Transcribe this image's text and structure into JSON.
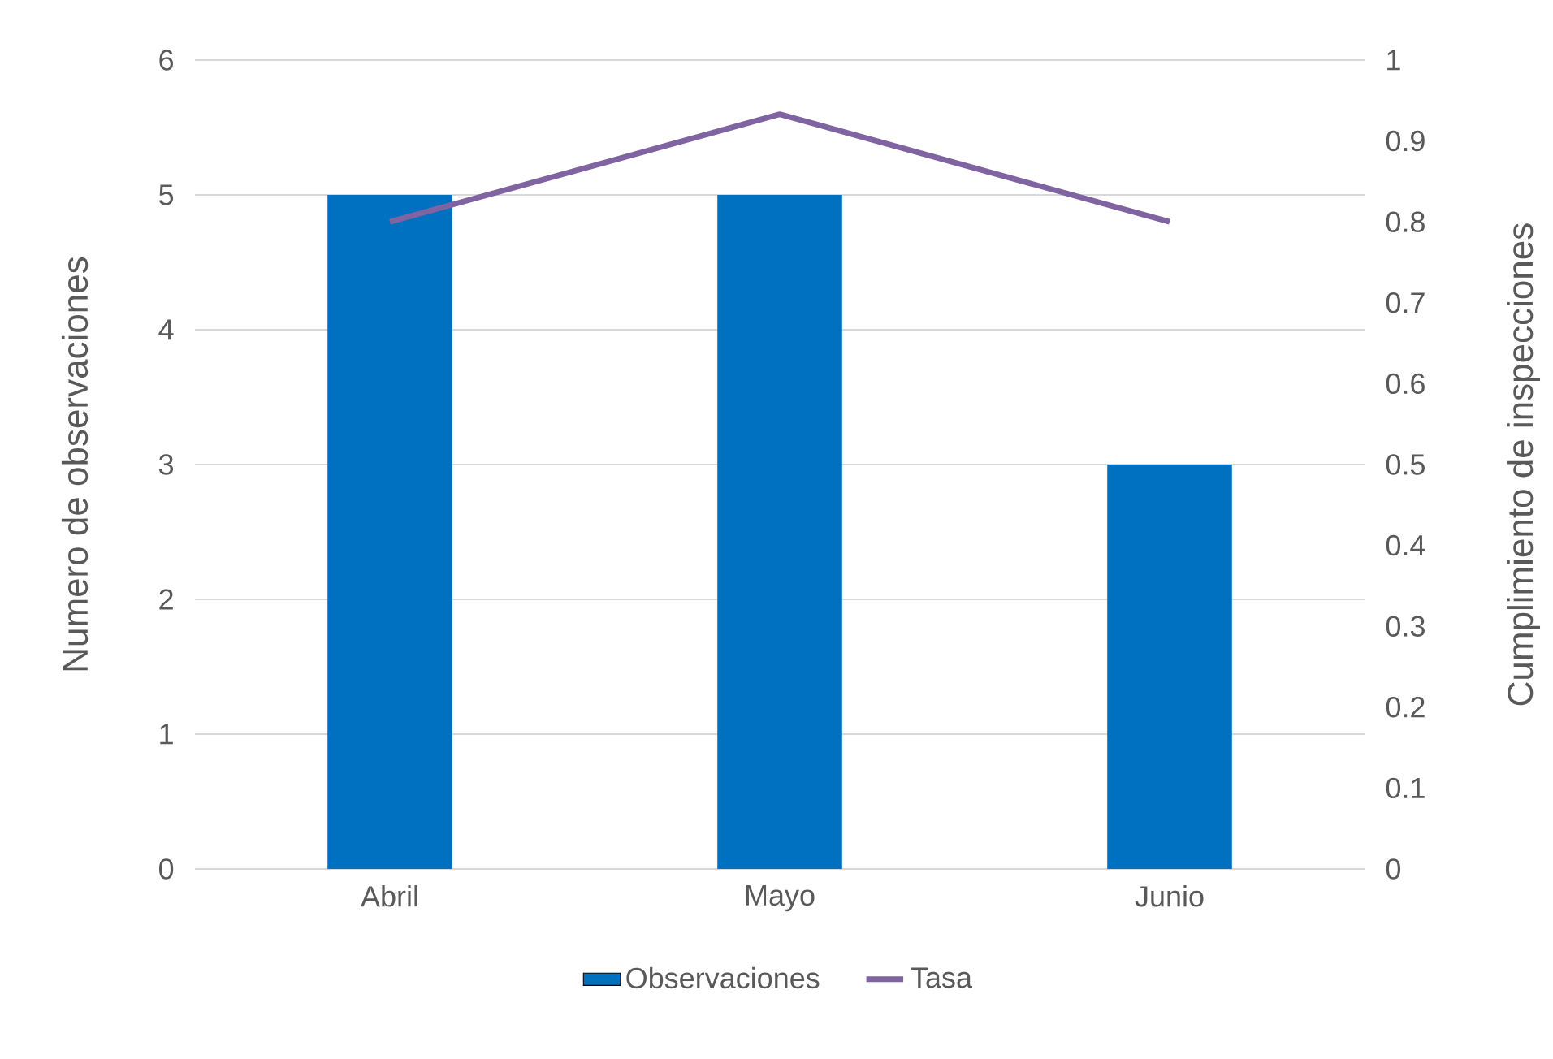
{
  "chart_data": {
    "type": "bar",
    "categories": [
      "Abril",
      "Mayo",
      "Junio"
    ],
    "series": [
      {
        "name": "Observaciones",
        "color": "#0070c0",
        "values": [
          5,
          5,
          3
        ]
      },
      {
        "name": "Tasa",
        "type": "line",
        "axis": "y2",
        "color": "#8064a2",
        "values": [
          0.8,
          0.933,
          0.8
        ]
      }
    ],
    "ylabel": "Numero de observaciones",
    "y2label": "Cumplimiento de inspecciones",
    "ylim": [
      0,
      6
    ],
    "yticks": [
      0,
      1,
      2,
      3,
      4,
      5,
      6
    ],
    "y2lim": [
      0,
      1
    ],
    "y2ticks": [
      0,
      0.1,
      0.2,
      0.3,
      0.4,
      0.5,
      0.6,
      0.7,
      0.8,
      0.9,
      1
    ],
    "grid": "y",
    "legend": "bottom"
  }
}
